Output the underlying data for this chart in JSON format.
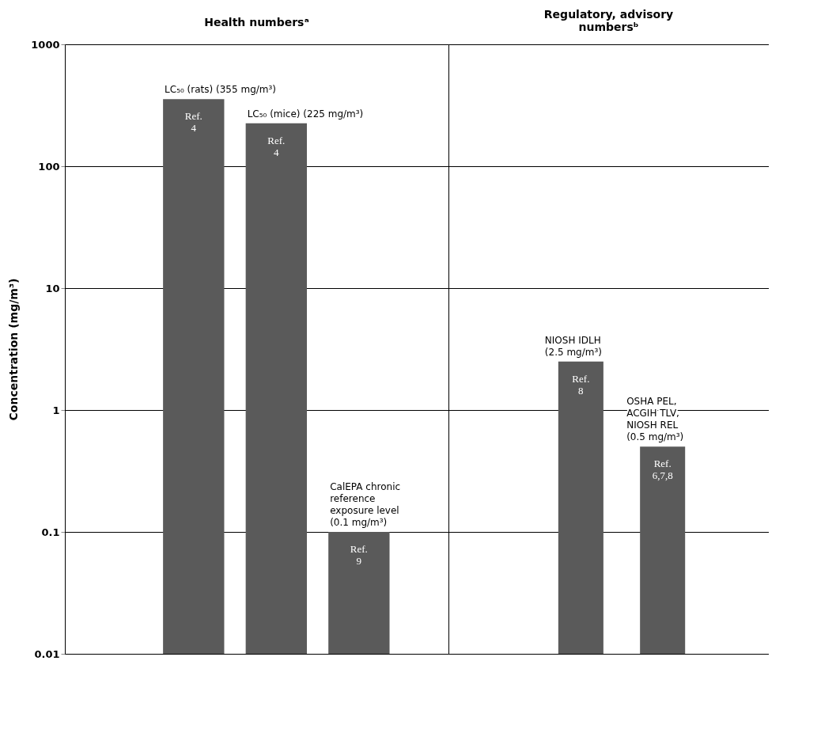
{
  "chart_data": [
    {
      "type": "bar",
      "title": "Health numbersᵃ",
      "ylabel": "Concentration (mg/m³)",
      "categories": [
        null,
        null,
        null
      ],
      "values": [
        355,
        225,
        0.1
      ],
      "color": "#5a5a5a",
      "value_labels": [
        "LC₅₀ (rats) (355 mg/m³)",
        "LC₅₀ (mice) (225 mg/m³)",
        "CalEPA chronic\nreference\nexposure level\n(0.1 mg/m³)"
      ],
      "annotations": [
        "Ref.\n4",
        "Ref.\n4",
        "Ref.\n9"
      ],
      "log": "y",
      "ylim": [
        0.01,
        1000
      ],
      "yticks": [
        0.01,
        0.1,
        1,
        10,
        100,
        1000
      ],
      "grid": "y",
      "tick_labels": "y"
    },
    {
      "type": "bar",
      "title": "Regulatory, advisory\nnumbersᵇ",
      "categories": [
        null,
        null
      ],
      "values": [
        2.5,
        0.5
      ],
      "color": "#5a5a5a",
      "value_labels": [
        "NIOSH IDLH\n(2.5 mg/m³)",
        "OSHA PEL,\nACGIH TLV,\nNIOSH REL\n(0.5 mg/m³)"
      ],
      "annotations": [
        "Ref.\n8",
        "Ref.\n6,7,8"
      ],
      "log": "y",
      "ylim": [
        0.01,
        1000
      ],
      "yticks": [
        0.01,
        0.1,
        1,
        10,
        100,
        1000
      ],
      "grid": "y",
      "tick_labels": false
    }
  ]
}
